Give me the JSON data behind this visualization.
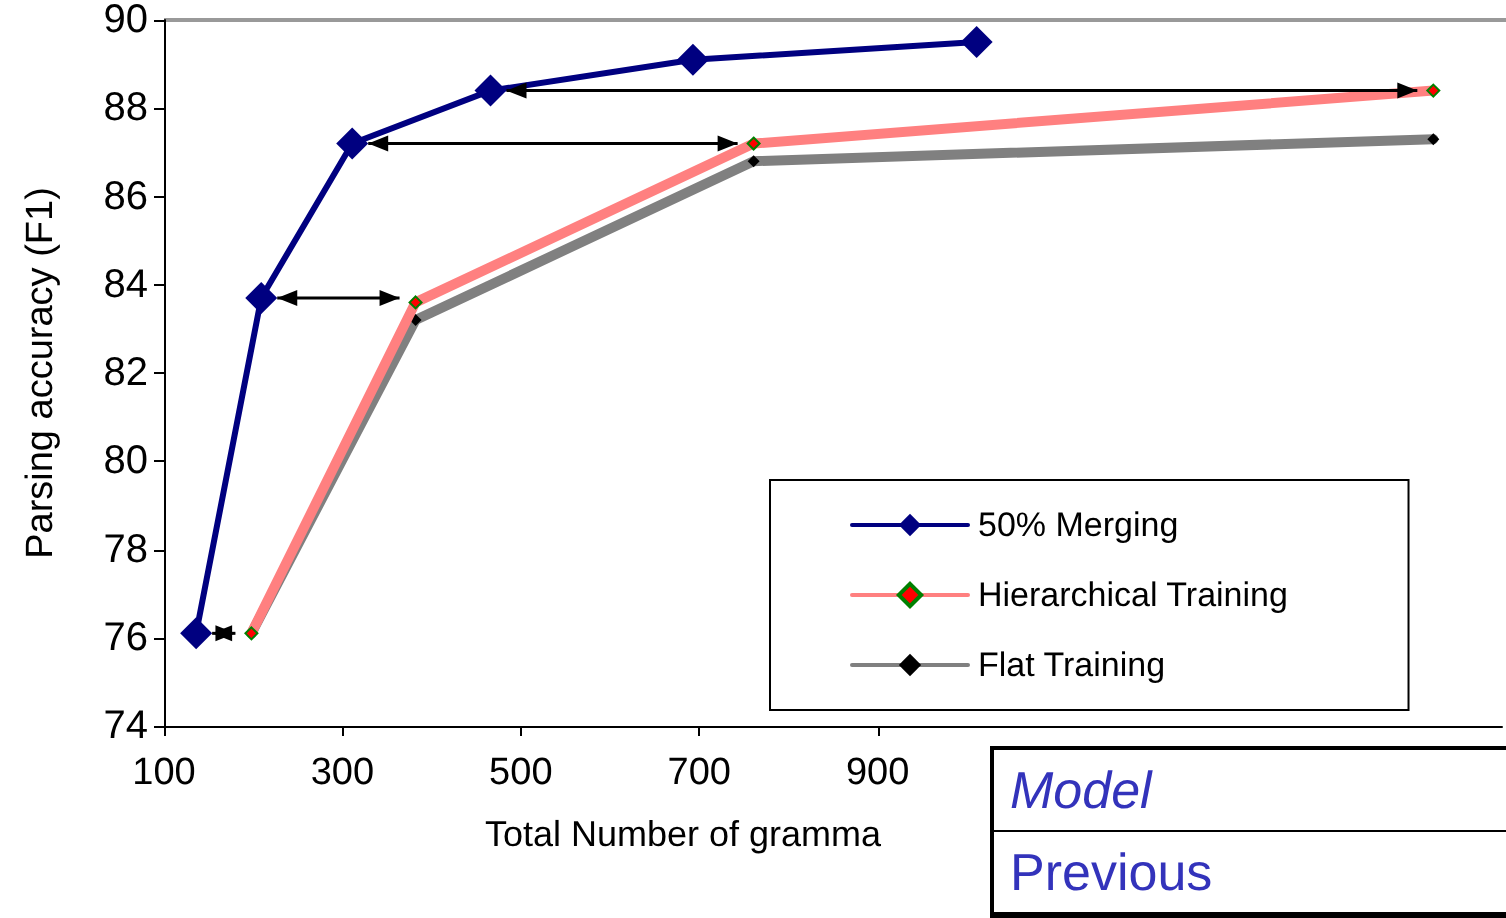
{
  "chart_data": {
    "type": "line",
    "xlabel": "Total Number of gramma",
    "ylabel": "Parsing accuracy (F1)",
    "xlim": [
      100,
      1600
    ],
    "xticks": [
      100,
      300,
      500,
      700,
      900
    ],
    "ylim": [
      74,
      90
    ],
    "yticks": [
      74,
      76,
      78,
      80,
      82,
      84,
      86,
      88,
      90
    ],
    "grid": false,
    "legend": "bottom right",
    "marker": "diamond",
    "line_style": "solid",
    "series": [
      {
        "name": "50% Merging",
        "color": "#000080",
        "x": [
          136,
          209,
          311,
          466,
          693,
          1011
        ],
        "values": [
          76.1,
          83.7,
          87.2,
          88.4,
          89.1,
          89.5
        ]
      },
      {
        "name": "Hierarchical Training",
        "color": "#ff8080",
        "x": [
          198,
          382,
          761,
          1523
        ],
        "values": [
          76.1,
          83.6,
          87.2,
          88.4
        ]
      },
      {
        "name": "Flat Training",
        "color": "#808080",
        "x": [
          198,
          382,
          761,
          1523
        ],
        "values": [
          76.1,
          83.2,
          86.8,
          87.3
        ]
      }
    ],
    "annotations": [
      "Model",
      "Previous"
    ]
  }
}
